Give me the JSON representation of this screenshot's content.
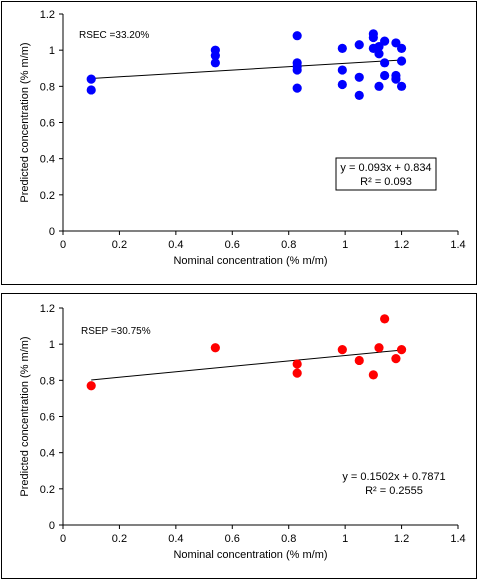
{
  "chart_data": [
    {
      "type": "scatter",
      "xlabel": "Nominal concentration (% m/m)",
      "ylabel": "Predicted concentration (% m/m)",
      "xlim": [
        0,
        1.4
      ],
      "ylim": [
        0,
        1.2
      ],
      "xticks": [
        "0",
        "0.2",
        "0.4",
        "0.6",
        "0.8",
        "1",
        "1.2",
        "1.4"
      ],
      "yticks": [
        "0",
        "0.2",
        "0.4",
        "0.6",
        "0.8",
        "1",
        "1.2"
      ],
      "annotation": "RSEC =33.20%",
      "equation": "y = 0.093x + 0.834",
      "r2": "R² = 0.093",
      "equation_boxed": true,
      "color": "#0000ff",
      "trendline": {
        "slope": 0.093,
        "intercept": 0.834,
        "x_range": [
          0.1,
          1.2
        ]
      },
      "points": [
        {
          "x": 0.1,
          "y": 0.84
        },
        {
          "x": 0.1,
          "y": 0.78
        },
        {
          "x": 0.54,
          "y": 1.0
        },
        {
          "x": 0.54,
          "y": 0.97
        },
        {
          "x": 0.54,
          "y": 0.93
        },
        {
          "x": 0.83,
          "y": 1.08
        },
        {
          "x": 0.83,
          "y": 0.93
        },
        {
          "x": 0.83,
          "y": 0.91
        },
        {
          "x": 0.83,
          "y": 0.89
        },
        {
          "x": 0.83,
          "y": 0.79
        },
        {
          "x": 0.99,
          "y": 1.01
        },
        {
          "x": 0.99,
          "y": 0.89
        },
        {
          "x": 0.99,
          "y": 0.81
        },
        {
          "x": 1.05,
          "y": 1.03
        },
        {
          "x": 1.05,
          "y": 0.85
        },
        {
          "x": 1.05,
          "y": 0.75
        },
        {
          "x": 1.1,
          "y": 1.09
        },
        {
          "x": 1.1,
          "y": 1.07
        },
        {
          "x": 1.1,
          "y": 1.01
        },
        {
          "x": 1.12,
          "y": 1.02
        },
        {
          "x": 1.12,
          "y": 0.98
        },
        {
          "x": 1.12,
          "y": 0.8
        },
        {
          "x": 1.14,
          "y": 1.05
        },
        {
          "x": 1.14,
          "y": 0.93
        },
        {
          "x": 1.14,
          "y": 0.86
        },
        {
          "x": 1.18,
          "y": 1.04
        },
        {
          "x": 1.18,
          "y": 0.86
        },
        {
          "x": 1.18,
          "y": 0.84
        },
        {
          "x": 1.2,
          "y": 1.01
        },
        {
          "x": 1.2,
          "y": 0.94
        },
        {
          "x": 1.2,
          "y": 0.8
        }
      ]
    },
    {
      "type": "scatter",
      "xlabel": "Nominal concentration (% m/m)",
      "ylabel": "Predicted concentration (% m/m)",
      "xlim": [
        0,
        1.4
      ],
      "ylim": [
        0,
        1.2
      ],
      "xticks": [
        "0",
        "0.2",
        "0.4",
        "0.6",
        "0.8",
        "1",
        "1.2",
        "1.4"
      ],
      "yticks": [
        "0",
        "0.2",
        "0.4",
        "0.6",
        "0.8",
        "1",
        "1.2"
      ],
      "annotation": "RSEP =30.75%",
      "equation": "y = 0.1502x + 0.7871",
      "r2": "R² = 0.2555",
      "equation_boxed": false,
      "color": "#ff0000",
      "trendline": {
        "slope": 0.1502,
        "intercept": 0.7871,
        "x_range": [
          0.1,
          1.2
        ]
      },
      "points": [
        {
          "x": 0.1,
          "y": 0.77
        },
        {
          "x": 0.54,
          "y": 0.98
        },
        {
          "x": 0.83,
          "y": 0.89
        },
        {
          "x": 0.83,
          "y": 0.84
        },
        {
          "x": 0.99,
          "y": 0.97
        },
        {
          "x": 1.05,
          "y": 0.91
        },
        {
          "x": 1.1,
          "y": 0.83
        },
        {
          "x": 1.12,
          "y": 0.98
        },
        {
          "x": 1.14,
          "y": 1.14
        },
        {
          "x": 1.18,
          "y": 0.92
        },
        {
          "x": 1.2,
          "y": 0.97
        }
      ]
    }
  ]
}
